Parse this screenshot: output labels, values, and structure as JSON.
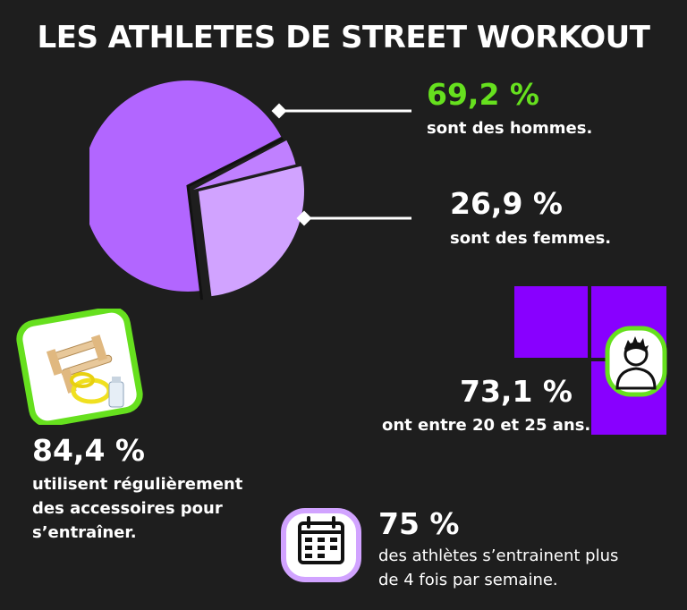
{
  "title": "LES ATHLETES DE STREET WORKOUT",
  "colors": {
    "background": "#1e1e1e",
    "pie_main": "#b266ff",
    "pie_light": "#d1a3ff",
    "accent_green": "#66e01e",
    "squares": "#8800ff"
  },
  "stats": {
    "men": {
      "value": "69,2 %",
      "label": "sont des hommes."
    },
    "women": {
      "value": "26,9 %",
      "label": "sont des femmes."
    },
    "age": {
      "value": "73,1 %",
      "label": "ont entre 20 et 25 ans."
    },
    "accessories": {
      "value": "84,4 %",
      "label_line1": "utilisent régulièrement",
      "label_line2": "des accessoires pour",
      "label_line3": "s’entraîner."
    },
    "training": {
      "value": "75 %",
      "label_line1": "des athlètes s’entrainent plus",
      "label_line2": "de 4 fois par semaine."
    }
  },
  "chart_data": {
    "type": "pie",
    "values": [
      69.2,
      26.9,
      3.9
    ],
    "labels": [
      "69,2 %",
      "26,9 %",
      ""
    ]
  },
  "icons": {
    "equipment": "parallettes-icon",
    "person": "person-icon",
    "calendar": "calendar-icon"
  }
}
